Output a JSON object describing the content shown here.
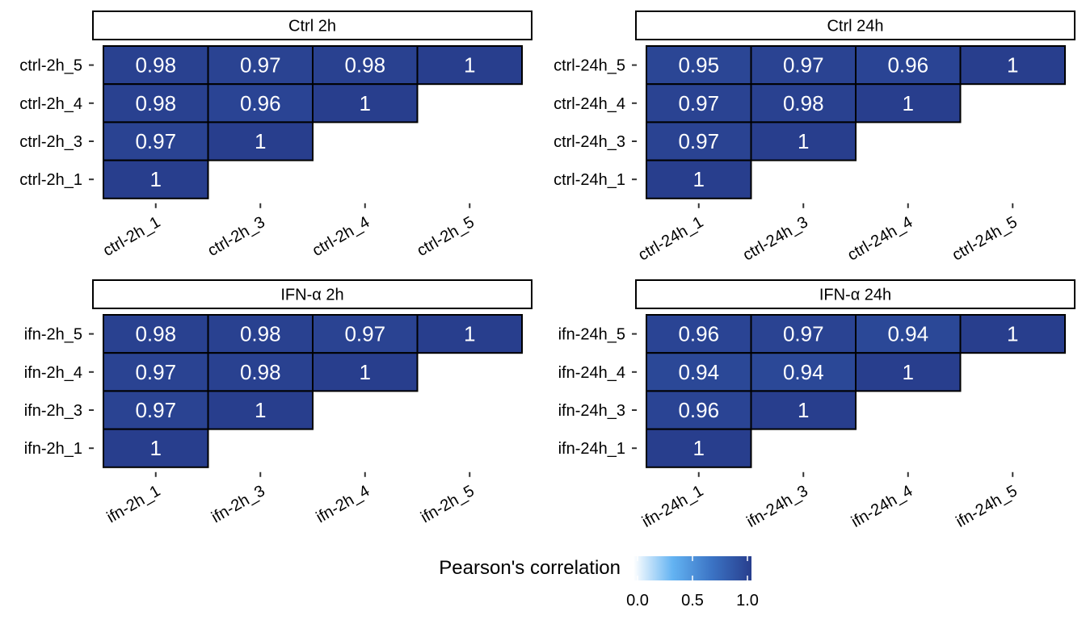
{
  "chart_data": [
    {
      "type": "heatmap",
      "title": "Ctrl 2h",
      "x_categories": [
        "ctrl-2h_1",
        "ctrl-2h_3",
        "ctrl-2h_4",
        "ctrl-2h_5"
      ],
      "y_categories": [
        "ctrl-2h_5",
        "ctrl-2h_4",
        "ctrl-2h_3",
        "ctrl-2h_1"
      ],
      "values": [
        [
          "0.98",
          "0.97",
          "0.98",
          "1"
        ],
        [
          "0.98",
          "0.96",
          "1",
          null
        ],
        [
          "0.97",
          "1",
          null,
          null
        ],
        [
          "1",
          null,
          null,
          null
        ]
      ]
    },
    {
      "type": "heatmap",
      "title": "Ctrl 24h",
      "x_categories": [
        "ctrl-24h_1",
        "ctrl-24h_3",
        "ctrl-24h_4",
        "ctrl-24h_5"
      ],
      "y_categories": [
        "ctrl-24h_5",
        "ctrl-24h_4",
        "ctrl-24h_3",
        "ctrl-24h_1"
      ],
      "values": [
        [
          "0.95",
          "0.97",
          "0.96",
          "1"
        ],
        [
          "0.97",
          "0.98",
          "1",
          null
        ],
        [
          "0.97",
          "1",
          null,
          null
        ],
        [
          "1",
          null,
          null,
          null
        ]
      ]
    },
    {
      "type": "heatmap",
      "title": "IFN-α 2h",
      "x_categories": [
        "ifn-2h_1",
        "ifn-2h_3",
        "ifn-2h_4",
        "ifn-2h_5"
      ],
      "y_categories": [
        "ifn-2h_5",
        "ifn-2h_4",
        "ifn-2h_3",
        "ifn-2h_1"
      ],
      "values": [
        [
          "0.98",
          "0.98",
          "0.97",
          "1"
        ],
        [
          "0.97",
          "0.98",
          "1",
          null
        ],
        [
          "0.97",
          "1",
          null,
          null
        ],
        [
          "1",
          null,
          null,
          null
        ]
      ]
    },
    {
      "type": "heatmap",
      "title": "IFN-α 24h",
      "x_categories": [
        "ifn-24h_1",
        "ifn-24h_3",
        "ifn-24h_4",
        "ifn-24h_5"
      ],
      "y_categories": [
        "ifn-24h_5",
        "ifn-24h_4",
        "ifn-24h_3",
        "ifn-24h_1"
      ],
      "values": [
        [
          "0.96",
          "0.97",
          "0.94",
          "1"
        ],
        [
          "0.94",
          "0.94",
          "1",
          null
        ],
        [
          "0.96",
          "1",
          null,
          null
        ],
        [
          "1",
          null,
          null,
          null
        ]
      ]
    }
  ],
  "legend": {
    "title": "Pearson's correlation",
    "ticks": [
      "0.0",
      "0.5",
      "1.0"
    ],
    "range": [
      0,
      1
    ],
    "colors": [
      "#ffffff",
      "#63b3f2",
      "#3b73c4",
      "#283e8d"
    ]
  }
}
